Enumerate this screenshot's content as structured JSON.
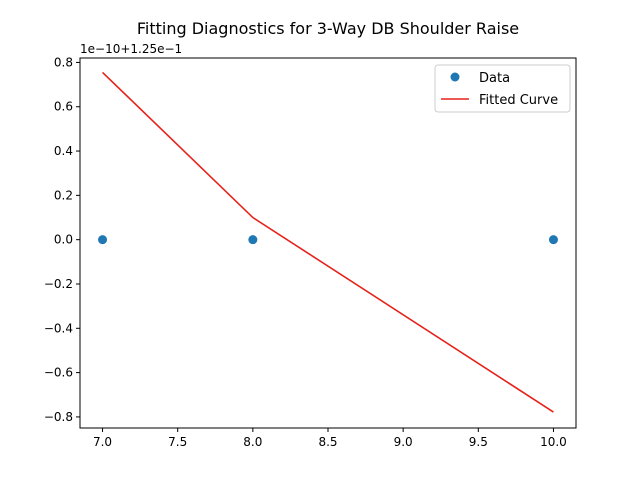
{
  "chart_data": {
    "type": "scatter",
    "title": "Fitting Diagnostics for 3-Way DB Shoulder Raise",
    "offset_label": "1e−10+1.25e−1",
    "xlabel": "",
    "ylabel": "",
    "xlim": [
      6.85,
      10.15
    ],
    "ylim": [
      -0.85,
      0.82
    ],
    "x_ticks": [
      7.0,
      7.5,
      8.0,
      8.5,
      9.0,
      9.5,
      10.0
    ],
    "x_tick_labels": [
      "7.0",
      "7.5",
      "8.0",
      "8.5",
      "9.0",
      "9.5",
      "10.0"
    ],
    "y_ticks": [
      -0.8,
      -0.6,
      -0.4,
      -0.2,
      0.0,
      0.2,
      0.4,
      0.6,
      0.8
    ],
    "y_tick_labels": [
      "−0.8",
      "−0.6",
      "−0.4",
      "−0.2",
      "0.0",
      "0.2",
      "0.4",
      "0.6",
      "0.8"
    ],
    "grid": false,
    "legend_position": "top-right",
    "series": [
      {
        "name": "Data",
        "kind": "scatter",
        "color": "#1f77b4",
        "x": [
          7,
          8,
          10
        ],
        "y": [
          0.0,
          0.0,
          0.0
        ]
      },
      {
        "name": "Fitted Curve",
        "kind": "line",
        "color": "#e6221a",
        "x": [
          7,
          8,
          10
        ],
        "y": [
          0.755,
          0.1,
          -0.778
        ]
      }
    ]
  }
}
